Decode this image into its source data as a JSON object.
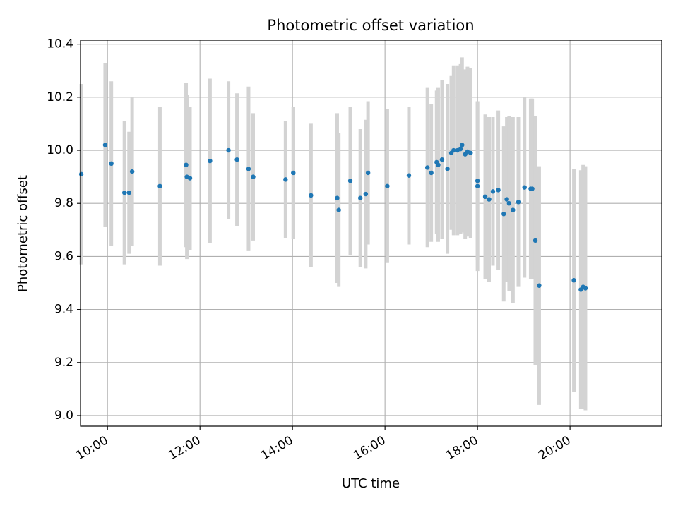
{
  "chart_data": {
    "type": "scatter",
    "title": "Photometric offset variation",
    "xlabel": "UTC time",
    "ylabel": "Photometric offset",
    "grid": true,
    "x_ticks": [
      "10:00",
      "12:00",
      "14:00",
      "16:00",
      "18:00",
      "20:00"
    ],
    "y_ticks": [
      "9.0",
      "9.2",
      "9.4",
      "9.6",
      "9.8",
      "10.0",
      "10.2",
      "10.4"
    ],
    "xlim": [
      "09:25",
      "21:59"
    ],
    "ylim": [
      8.96,
      10.415
    ],
    "colors": {
      "marker": "#1f77b4",
      "errorbar": "#d3d3d3",
      "grid": "#b0b0b0",
      "axes": "#000000"
    },
    "series": [
      {
        "x": [
          "09:26",
          "09:57",
          "10:05",
          "10:22",
          "10:28",
          "10:32",
          "11:08",
          "11:42",
          "11:43",
          "11:47",
          "12:13",
          "12:37",
          "12:48",
          "13:03",
          "13:09",
          "13:51",
          "14:01",
          "14:24",
          "14:58",
          "15:00",
          "15:15",
          "15:28",
          "15:35",
          "15:38",
          "16:03",
          "16:31",
          "16:55",
          "17:00",
          "17:07",
          "17:09",
          "17:14",
          "17:21",
          "17:26",
          "17:29",
          "17:34",
          "17:38",
          "17:40",
          "17:44",
          "17:47",
          "17:51",
          "18:00",
          "18:00",
          "18:10",
          "18:15",
          "18:20",
          "18:27",
          "18:34",
          "18:38",
          "18:41",
          "18:46",
          "18:53",
          "19:01",
          "19:09",
          "19:11",
          "19:15",
          "19:20",
          "20:05",
          "20:14",
          "20:17",
          "20:20"
        ],
        "y": [
          9.91,
          10.02,
          9.95,
          9.84,
          9.84,
          9.92,
          9.865,
          9.945,
          9.9,
          9.895,
          9.96,
          10.0,
          9.965,
          9.93,
          9.9,
          9.89,
          9.915,
          9.83,
          9.82,
          9.775,
          9.885,
          9.82,
          9.835,
          9.915,
          9.865,
          9.905,
          9.935,
          9.915,
          9.955,
          9.945,
          9.965,
          9.93,
          9.99,
          10.0,
          10.0,
          10.005,
          10.02,
          9.985,
          9.995,
          9.99,
          9.885,
          9.865,
          9.825,
          9.815,
          9.845,
          9.85,
          9.76,
          9.815,
          9.8,
          9.775,
          9.805,
          9.86,
          9.855,
          9.855,
          9.66,
          9.49,
          9.51,
          9.475,
          9.485,
          9.48
        ],
        "err": [
          0.34,
          0.31,
          0.31,
          0.27,
          0.23,
          0.28,
          0.3,
          0.31,
          0.31,
          0.27,
          0.31,
          0.26,
          0.25,
          0.31,
          0.24,
          0.22,
          0.25,
          0.27,
          0.32,
          0.29,
          0.28,
          0.26,
          0.28,
          0.27,
          0.29,
          0.26,
          0.3,
          0.26,
          0.27,
          0.29,
          0.3,
          0.32,
          0.29,
          0.32,
          0.32,
          0.32,
          0.33,
          0.32,
          0.32,
          0.32,
          0.3,
          0.32,
          0.31,
          0.31,
          0.28,
          0.3,
          0.33,
          0.31,
          0.33,
          0.35,
          0.32,
          0.34,
          0.34,
          0.34,
          0.47,
          0.45,
          0.42,
          0.45,
          0.46,
          0.46
        ]
      }
    ]
  }
}
